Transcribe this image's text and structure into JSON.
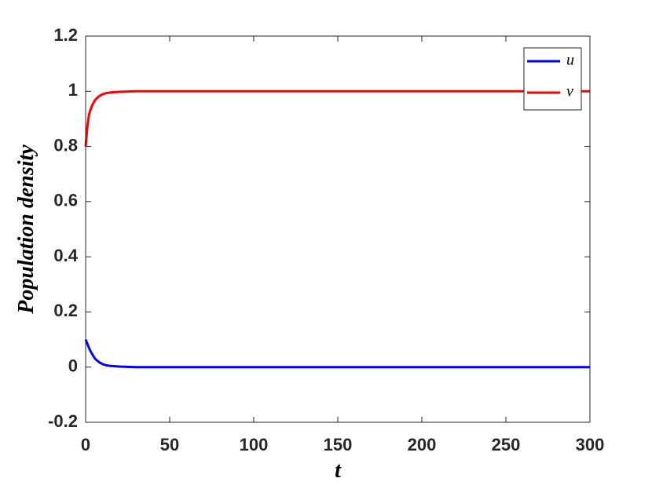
{
  "chart_data": {
    "type": "line",
    "xlabel": "t",
    "ylabel": "Population  density",
    "x": [
      0,
      1,
      2,
      3,
      4,
      5,
      6,
      8,
      10,
      12,
      15,
      20,
      25,
      30,
      50,
      100,
      150,
      200,
      250,
      300
    ],
    "series": [
      {
        "name": "u",
        "color": "#0000ff",
        "values": [
          0.1,
          0.085,
          0.07,
          0.057,
          0.046,
          0.036,
          0.028,
          0.018,
          0.011,
          0.007,
          0.004,
          0.002,
          0.001,
          0,
          0,
          0,
          0,
          0,
          0,
          0
        ]
      },
      {
        "name": "v",
        "color": "#ff0000",
        "values": [
          0.8,
          0.87,
          0.915,
          0.935,
          0.95,
          0.962,
          0.971,
          0.982,
          0.989,
          0.993,
          0.996,
          0.998,
          0.999,
          1,
          1,
          1,
          1,
          1,
          1,
          1
        ]
      }
    ],
    "xlim": [
      0,
      300
    ],
    "xticks": [
      0,
      50,
      100,
      150,
      200,
      250,
      300
    ],
    "ylim": [
      -0.2,
      1.2
    ],
    "yticks": [
      -0.2,
      0,
      0.2,
      0.4,
      0.6,
      0.8,
      1,
      1.2
    ],
    "legend": "upper-right"
  }
}
